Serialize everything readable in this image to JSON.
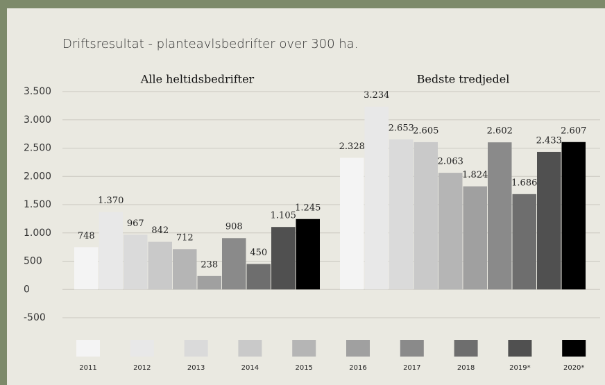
{
  "chart_data": {
    "type": "bar",
    "title": "Driftsresultat - planteavlsbedrifter over 300 ha.",
    "categories": [
      "Alle heltidsbedrifter",
      "Bedste tredjedel"
    ],
    "series": [
      {
        "name": "2011",
        "color": "#f4f4f4",
        "values": [
          748,
          2328
        ],
        "value_labels": [
          "748",
          "2.328"
        ]
      },
      {
        "name": "2012",
        "color": "#e8e8e8",
        "values": [
          1370,
          3234
        ],
        "value_labels": [
          "1.370",
          "3.234"
        ]
      },
      {
        "name": "2013",
        "color": "#dadada",
        "values": [
          967,
          2653
        ],
        "value_labels": [
          "967",
          "2.653"
        ]
      },
      {
        "name": "2014",
        "color": "#c9c9c9",
        "values": [
          842,
          2605
        ],
        "value_labels": [
          "842",
          "2.605"
        ]
      },
      {
        "name": "2015",
        "color": "#b5b5b5",
        "values": [
          712,
          2063
        ],
        "value_labels": [
          "712",
          "2.063"
        ]
      },
      {
        "name": "2016",
        "color": "#a0a0a0",
        "values": [
          238,
          1824
        ],
        "value_labels": [
          "238",
          "1.824"
        ]
      },
      {
        "name": "2017",
        "color": "#8a8a8a",
        "values": [
          908,
          2602
        ],
        "value_labels": [
          "908",
          "2.602"
        ]
      },
      {
        "name": "2018",
        "color": "#6e6e6e",
        "values": [
          450,
          1686
        ],
        "value_labels": [
          "450",
          "1.686"
        ]
      },
      {
        "name": "2019*",
        "color": "#505050",
        "values": [
          1105,
          2433
        ],
        "value_labels": [
          "1.105",
          "2.433"
        ]
      },
      {
        "name": "2020*",
        "color": "#000000",
        "values": [
          1245,
          2607
        ],
        "value_labels": [
          "1.245",
          "2.607"
        ]
      }
    ],
    "ylim": [
      -500,
      3500
    ],
    "yticks": [
      -500,
      0,
      500,
      {
        "value": 1000,
        "label": "1.000"
      },
      {
        "value": 1500,
        "label": "1.500"
      },
      {
        "value": 2000,
        "label": "2.000"
      },
      {
        "value": 2500,
        "label": "2.500"
      },
      {
        "value": 3000,
        "label": "3.000"
      },
      {
        "value": 3500,
        "label": "3.500"
      }
    ],
    "grid": true
  }
}
